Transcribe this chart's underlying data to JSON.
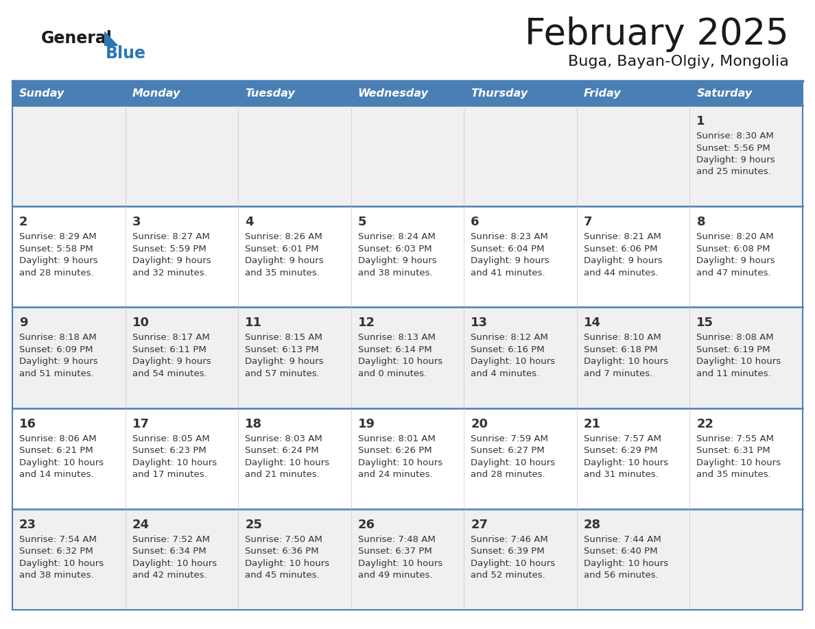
{
  "title": "February 2025",
  "subtitle": "Buga, Bayan-Olgiy, Mongolia",
  "days_of_week": [
    "Sunday",
    "Monday",
    "Tuesday",
    "Wednesday",
    "Thursday",
    "Friday",
    "Saturday"
  ],
  "header_bg": "#4a7fb5",
  "header_text_color": "#ffffff",
  "cell_bg_light": "#f0f0f0",
  "cell_bg_white": "#ffffff",
  "row_line_color": "#4a7fb5",
  "text_color": "#333333",
  "title_color": "#1a1a1a",
  "subtitle_color": "#1a1a1a",
  "logo_general_color": "#1a1a1a",
  "logo_blue_color": "#2e75b6",
  "calendar_data": [
    [
      {
        "day": "",
        "sunrise": "",
        "sunset": "",
        "daylight": ""
      },
      {
        "day": "",
        "sunrise": "",
        "sunset": "",
        "daylight": ""
      },
      {
        "day": "",
        "sunrise": "",
        "sunset": "",
        "daylight": ""
      },
      {
        "day": "",
        "sunrise": "",
        "sunset": "",
        "daylight": ""
      },
      {
        "day": "",
        "sunrise": "",
        "sunset": "",
        "daylight": ""
      },
      {
        "day": "",
        "sunrise": "",
        "sunset": "",
        "daylight": ""
      },
      {
        "day": "1",
        "sunrise": "8:30 AM",
        "sunset": "5:56 PM",
        "daylight": "9 hours\nand 25 minutes."
      }
    ],
    [
      {
        "day": "2",
        "sunrise": "8:29 AM",
        "sunset": "5:58 PM",
        "daylight": "9 hours\nand 28 minutes."
      },
      {
        "day": "3",
        "sunrise": "8:27 AM",
        "sunset": "5:59 PM",
        "daylight": "9 hours\nand 32 minutes."
      },
      {
        "day": "4",
        "sunrise": "8:26 AM",
        "sunset": "6:01 PM",
        "daylight": "9 hours\nand 35 minutes."
      },
      {
        "day": "5",
        "sunrise": "8:24 AM",
        "sunset": "6:03 PM",
        "daylight": "9 hours\nand 38 minutes."
      },
      {
        "day": "6",
        "sunrise": "8:23 AM",
        "sunset": "6:04 PM",
        "daylight": "9 hours\nand 41 minutes."
      },
      {
        "day": "7",
        "sunrise": "8:21 AM",
        "sunset": "6:06 PM",
        "daylight": "9 hours\nand 44 minutes."
      },
      {
        "day": "8",
        "sunrise": "8:20 AM",
        "sunset": "6:08 PM",
        "daylight": "9 hours\nand 47 minutes."
      }
    ],
    [
      {
        "day": "9",
        "sunrise": "8:18 AM",
        "sunset": "6:09 PM",
        "daylight": "9 hours\nand 51 minutes."
      },
      {
        "day": "10",
        "sunrise": "8:17 AM",
        "sunset": "6:11 PM",
        "daylight": "9 hours\nand 54 minutes."
      },
      {
        "day": "11",
        "sunrise": "8:15 AM",
        "sunset": "6:13 PM",
        "daylight": "9 hours\nand 57 minutes."
      },
      {
        "day": "12",
        "sunrise": "8:13 AM",
        "sunset": "6:14 PM",
        "daylight": "10 hours\nand 0 minutes."
      },
      {
        "day": "13",
        "sunrise": "8:12 AM",
        "sunset": "6:16 PM",
        "daylight": "10 hours\nand 4 minutes."
      },
      {
        "day": "14",
        "sunrise": "8:10 AM",
        "sunset": "6:18 PM",
        "daylight": "10 hours\nand 7 minutes."
      },
      {
        "day": "15",
        "sunrise": "8:08 AM",
        "sunset": "6:19 PM",
        "daylight": "10 hours\nand 11 minutes."
      }
    ],
    [
      {
        "day": "16",
        "sunrise": "8:06 AM",
        "sunset": "6:21 PM",
        "daylight": "10 hours\nand 14 minutes."
      },
      {
        "day": "17",
        "sunrise": "8:05 AM",
        "sunset": "6:23 PM",
        "daylight": "10 hours\nand 17 minutes."
      },
      {
        "day": "18",
        "sunrise": "8:03 AM",
        "sunset": "6:24 PM",
        "daylight": "10 hours\nand 21 minutes."
      },
      {
        "day": "19",
        "sunrise": "8:01 AM",
        "sunset": "6:26 PM",
        "daylight": "10 hours\nand 24 minutes."
      },
      {
        "day": "20",
        "sunrise": "7:59 AM",
        "sunset": "6:27 PM",
        "daylight": "10 hours\nand 28 minutes."
      },
      {
        "day": "21",
        "sunrise": "7:57 AM",
        "sunset": "6:29 PM",
        "daylight": "10 hours\nand 31 minutes."
      },
      {
        "day": "22",
        "sunrise": "7:55 AM",
        "sunset": "6:31 PM",
        "daylight": "10 hours\nand 35 minutes."
      }
    ],
    [
      {
        "day": "23",
        "sunrise": "7:54 AM",
        "sunset": "6:32 PM",
        "daylight": "10 hours\nand 38 minutes."
      },
      {
        "day": "24",
        "sunrise": "7:52 AM",
        "sunset": "6:34 PM",
        "daylight": "10 hours\nand 42 minutes."
      },
      {
        "day": "25",
        "sunrise": "7:50 AM",
        "sunset": "6:36 PM",
        "daylight": "10 hours\nand 45 minutes."
      },
      {
        "day": "26",
        "sunrise": "7:48 AM",
        "sunset": "6:37 PM",
        "daylight": "10 hours\nand 49 minutes."
      },
      {
        "day": "27",
        "sunrise": "7:46 AM",
        "sunset": "6:39 PM",
        "daylight": "10 hours\nand 52 minutes."
      },
      {
        "day": "28",
        "sunrise": "7:44 AM",
        "sunset": "6:40 PM",
        "daylight": "10 hours\nand 56 minutes."
      },
      {
        "day": "",
        "sunrise": "",
        "sunset": "",
        "daylight": ""
      }
    ]
  ]
}
